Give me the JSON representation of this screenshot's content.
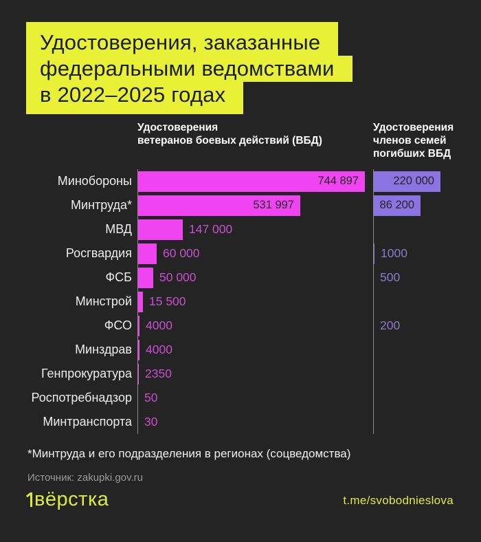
{
  "title": {
    "lines": [
      "Удостоверения, заказанные",
      "федеральными ведомствами",
      "в 2022–2025 годах"
    ]
  },
  "headers": {
    "left": [
      "Удостоверения",
      "ветеранов боевых действий (ВБД)"
    ],
    "right": [
      "Удостоверения",
      "членов семей",
      "погибших ВБД"
    ]
  },
  "chart_data": {
    "type": "bar",
    "orientation": "horizontal",
    "categories": [
      "Минобороны",
      "Минтруда*",
      "МВД",
      "Росгвардия",
      "ФСБ",
      "Минстрой",
      "ФСО",
      "Минздрав",
      "Генпрокуратура",
      "Роспотребнадзор",
      "Минтранспорта"
    ],
    "series": [
      {
        "name": "Удостоверения ветеранов боевых действий (ВБД)",
        "values": [
          744897,
          531997,
          147000,
          60000,
          50000,
          15500,
          4000,
          4000,
          2350,
          50,
          30
        ],
        "labels": [
          "744 897",
          "531 997",
          "147 000",
          "60 000",
          "50 000",
          "15 500",
          "4000",
          "4000",
          "2350",
          "50",
          "30"
        ],
        "label_inside": [
          true,
          true,
          false,
          false,
          false,
          false,
          false,
          false,
          false,
          false,
          false
        ],
        "color": "#f044f3",
        "value_color": "#c94fd0"
      },
      {
        "name": "Удостоверения членов семей погибших ВБД",
        "values": [
          220000,
          86200,
          null,
          1000,
          500,
          null,
          200,
          null,
          null,
          null,
          null
        ],
        "labels": [
          "220 000",
          "86 200",
          "",
          "1000",
          "500",
          "",
          "200",
          "",
          "",
          "",
          ""
        ],
        "label_inside": [
          true,
          true,
          false,
          false,
          false,
          false,
          false,
          false,
          false,
          false,
          false
        ],
        "color": "#8c73e2",
        "value_color": "#8a7ac9"
      }
    ],
    "xlim": [
      0,
      744897
    ],
    "grid": false,
    "legend_position": "top"
  },
  "footnote": "*Минтруда и его подразделения в регионах (соцведомства)",
  "source": "Источник: zakupki.gov.ru",
  "footer": {
    "logo": "вёрстка",
    "link": "t.me/svobodnieslova"
  },
  "colors": {
    "background": "#242424",
    "accent_yellow": "#e9f136",
    "magenta_bar": "#f044f3",
    "magenta_value_text": "#c94fd0",
    "purple_bar": "#8c73e2",
    "purple_value_text": "#8a7ac9",
    "label_text": "#ededed",
    "in_bar_text": "#242424",
    "axis_line": "#8a8a8a",
    "source_text": "#9b9b9b"
  }
}
